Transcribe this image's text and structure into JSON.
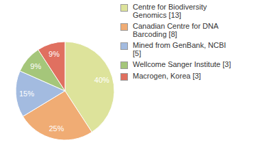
{
  "chart_data": {
    "type": "pie",
    "categories": [
      "Centre for Biodiversity Genomics [13]",
      "Canadian Centre for DNA Barcoding [8]",
      "Mined from GenBank, NCBI [5]",
      "Wellcome Sanger Institute [3]",
      "Macrogen, Korea [3]"
    ],
    "values": [
      40,
      25,
      15,
      9,
      9
    ],
    "value_labels": [
      "40%",
      "25%",
      "15%",
      "9%",
      "9%"
    ],
    "colors": [
      "#dde39b",
      "#f0ac74",
      "#a3bbe0",
      "#a5c67a",
      "#e07060"
    ],
    "data_labels": true,
    "legend": "right"
  }
}
